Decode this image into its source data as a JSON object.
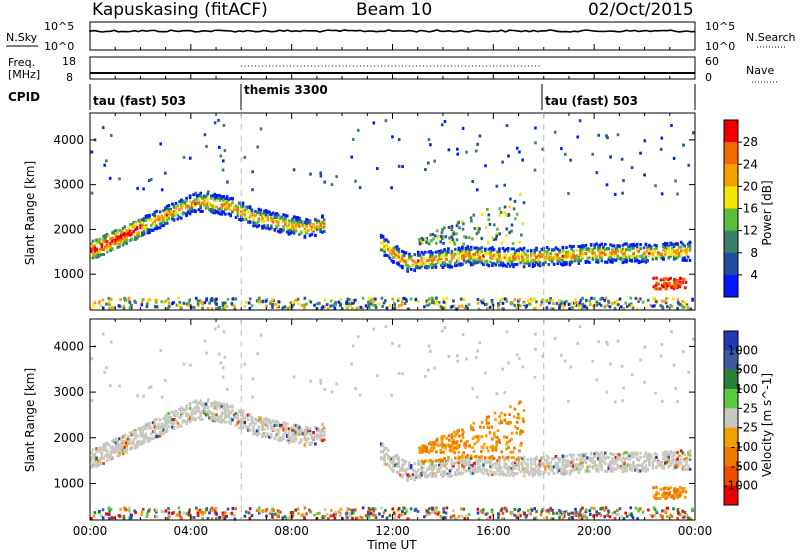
{
  "header": {
    "station": "Kapuskasing (fitACF)",
    "beam": "Beam 10",
    "date": "02/Oct/2015"
  },
  "panels": {
    "nsky_label": "N.Sky",
    "nsky_ticks": [
      "10^5",
      "10^0"
    ],
    "nsearch_label": "N.Search",
    "nsearch_ticks": [
      "10^5",
      "10^0"
    ],
    "freq_label_line1": "Freq.",
    "freq_label_line2": "[MHz]",
    "freq_ticks": [
      "18",
      "8"
    ],
    "nave_label": "Nave",
    "nave_ticks": [
      "60",
      "0"
    ],
    "cpid_label": "CPID",
    "cpid_segments": [
      {
        "label": "tau (fast) 503",
        "start_hour": 0
      },
      {
        "label": "themis 3300",
        "start_hour": 6
      },
      {
        "label": "tau (fast) 503",
        "start_hour": 18
      }
    ]
  },
  "chart_data": [
    {
      "type": "heatmap",
      "title": "Power",
      "xlabel": "Time UT",
      "ylabel": "Slant Range [km]",
      "x_range_hours": [
        0,
        24
      ],
      "ylim": [
        200,
        4600
      ],
      "y_ticks": [
        1000,
        2000,
        3000,
        4000
      ],
      "colorbar_label": "Power [dB]",
      "colorbar_ticks": [
        "4",
        "8",
        "12",
        "16",
        "20",
        "24",
        "28"
      ],
      "colorbar_colors": [
        "#0019ff",
        "#1f4fa0",
        "#3a7f6a",
        "#5cbd3c",
        "#f5e800",
        "#f5a000",
        "#f46a00",
        "#f00000"
      ],
      "series": [
        {
          "ranges_km": [
            [
              1200,
              1800
            ]
          ],
          "x": [
            0,
            3,
            4,
            4.5,
            5.5,
            6.5,
            8.5,
            9.3
          ],
          "y": [
            1550,
            2350,
            2600,
            2650,
            2550,
            2300,
            2050,
            2150
          ]
        },
        {
          "x": [
            11.5,
            12.5,
            13.5,
            15,
            17,
            19,
            20,
            22,
            23.8
          ],
          "y": [
            1700,
            1300,
            1350,
            1450,
            1400,
            1450,
            1500,
            1500,
            1550
          ]
        }
      ]
    },
    {
      "type": "heatmap",
      "title": "Velocity",
      "xlabel": "Time UT",
      "ylabel": "Slant Range [km]",
      "x_range_hours": [
        0,
        24
      ],
      "ylim": [
        200,
        4600
      ],
      "y_ticks": [
        1000,
        2000,
        3000,
        4000
      ],
      "colorbar_label": "Velocity [m s^-1]",
      "colorbar_ticks": [
        "1000",
        "500",
        "100",
        "25",
        "-25",
        "-100",
        "-500",
        "-1000"
      ],
      "colorbar_colors": [
        "#1f3ab4",
        "#3c5aa0",
        "#2a7f3a",
        "#5acb3c",
        "#c8c8c0",
        "#f5a000",
        "#f07800",
        "#f04a00",
        "#f00000"
      ]
    }
  ],
  "x_axis": {
    "ticks": [
      "00:00",
      "04:00",
      "08:00",
      "12:00",
      "16:00",
      "20:00",
      "00:00"
    ],
    "label": "Time UT"
  }
}
